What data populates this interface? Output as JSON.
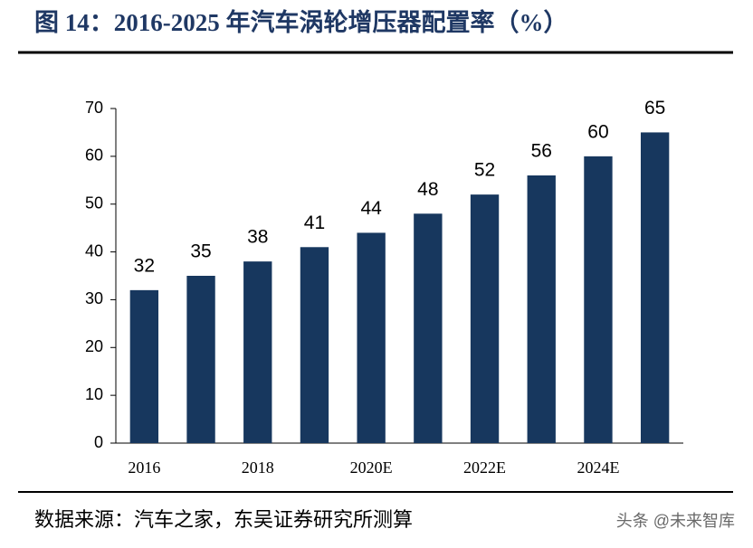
{
  "chart_data": {
    "type": "bar",
    "title": "图 14：2016-2025 年汽车涡轮增压器配置率（%）",
    "categories": [
      "2016",
      null,
      "2018",
      null,
      "2020E",
      null,
      "2022E",
      null,
      "2024E",
      null
    ],
    "values": [
      32,
      35,
      38,
      41,
      44,
      48,
      52,
      56,
      60,
      65
    ],
    "color": "#17375e",
    "ylim": [
      0,
      70
    ],
    "yticks": [
      0,
      10,
      20,
      30,
      40,
      50,
      60,
      70
    ],
    "source": "数据来源：汽车之家，东吴证券研究所测算",
    "watermark": "头条 @未来智库"
  }
}
